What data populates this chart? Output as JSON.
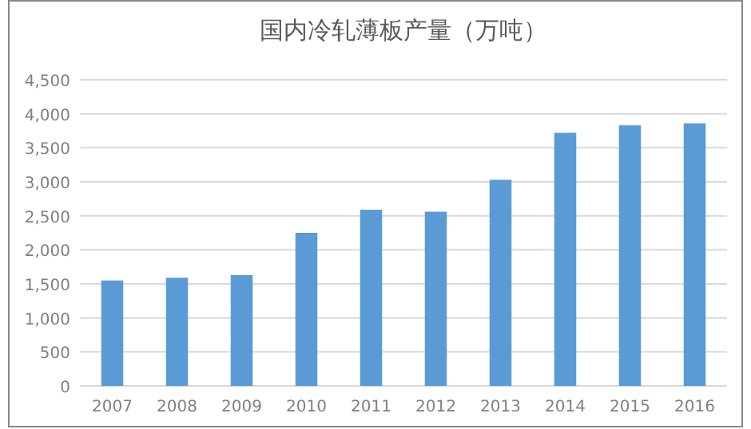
{
  "chart_data": {
    "type": "bar",
    "title": "国内冷轧薄板产量（万吨）",
    "categories": [
      "2007",
      "2008",
      "2009",
      "2010",
      "2011",
      "2012",
      "2013",
      "2014",
      "2015",
      "2016"
    ],
    "values": [
      1550,
      1590,
      1630,
      2250,
      2590,
      2560,
      3030,
      3720,
      3830,
      3860
    ],
    "color": "#5b9bd5",
    "ylim": [
      0,
      4500
    ],
    "yticks": [
      0,
      500,
      {
        "value": 1000,
        "label": "1,000"
      },
      {
        "value": 1500,
        "label": "1,500"
      },
      {
        "value": 2000,
        "label": "2,000"
      },
      {
        "value": 2500,
        "label": "2,500"
      },
      {
        "value": 3000,
        "label": "3,000"
      },
      {
        "value": 3500,
        "label": "3,500"
      },
      {
        "value": 4000,
        "label": "4,000"
      },
      {
        "value": 4500,
        "label": "4,500"
      }
    ],
    "grid": "y"
  }
}
